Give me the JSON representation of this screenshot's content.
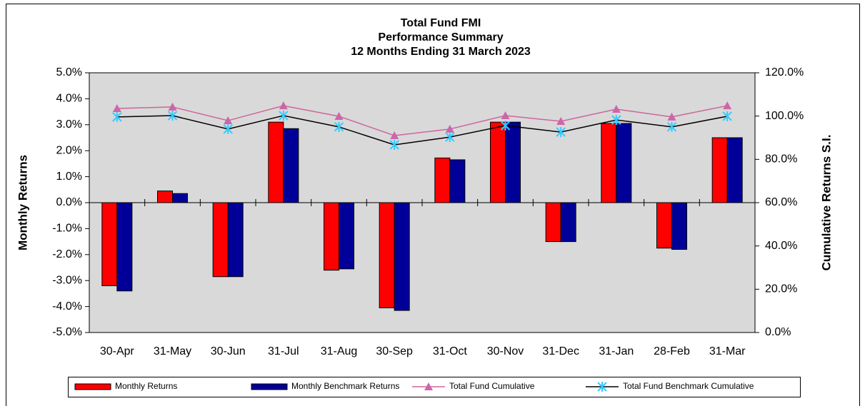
{
  "chart_data": {
    "type": "bar-line",
    "title": [
      "Total Fund FMI",
      "Performance Summary",
      "12 Months Ending 31 March 2023"
    ],
    "y_label": "Monthly Returns",
    "y2_label": "Cumulative Returns S.I.",
    "categories": [
      "30-Apr",
      "31-May",
      "30-Jun",
      "31-Jul",
      "31-Aug",
      "30-Sep",
      "31-Oct",
      "30-Nov",
      "31-Dec",
      "31-Jan",
      "28-Feb",
      "31-Mar"
    ],
    "ylim": [
      -5,
      5
    ],
    "yticks": [
      {
        "value": -5,
        "label": "-5.0%"
      },
      {
        "value": -4,
        "label": "-4.0%"
      },
      {
        "value": -3,
        "label": "-3.0%"
      },
      {
        "value": -2,
        "label": "-2.0%"
      },
      {
        "value": -1,
        "label": "-1.0%"
      },
      {
        "value": 0,
        "label": "0.0%"
      },
      {
        "value": 1,
        "label": "1.0%"
      },
      {
        "value": 2,
        "label": "2.0%"
      },
      {
        "value": 3,
        "label": "3.0%"
      },
      {
        "value": 4,
        "label": "4.0%"
      },
      {
        "value": 5,
        "label": "5.0%"
      }
    ],
    "y2lim": [
      0,
      120
    ],
    "y2ticks": [
      {
        "value": 0,
        "label": "0.0%"
      },
      {
        "value": 20,
        "label": "20.0%"
      },
      {
        "value": 40,
        "label": "40.0%"
      },
      {
        "value": 60,
        "label": "60.0%"
      },
      {
        "value": 80,
        "label": "80.0%"
      },
      {
        "value": 100,
        "label": "100.0%"
      },
      {
        "value": 120,
        "label": "120.0%"
      }
    ],
    "series": [
      {
        "name": "Monthly Returns",
        "kind": "bar",
        "color": "#ff0000",
        "values": [
          -3.2,
          0.45,
          -2.85,
          3.1,
          -2.6,
          -4.05,
          1.72,
          3.1,
          -1.5,
          3.05,
          -1.75,
          2.5
        ]
      },
      {
        "name": "Monthly Benchmark Returns",
        "kind": "bar",
        "color": "#000099",
        "values": [
          -3.4,
          0.35,
          -2.85,
          2.85,
          -2.55,
          -4.15,
          1.65,
          3.1,
          -1.5,
          3.05,
          -1.8,
          2.5
        ]
      },
      {
        "name": "Total Fund Cumulative",
        "kind": "line",
        "axis": "y2",
        "color": "#cc6699",
        "marker": "triangle",
        "marker_color": "#cc66aa",
        "values": [
          103.5,
          104.2,
          97.9,
          104.8,
          99.9,
          91.0,
          94.0,
          100.2,
          97.6,
          103.2,
          99.6,
          104.8
        ]
      },
      {
        "name": "Total Fund Benchmark Cumulative",
        "kind": "line",
        "axis": "y2",
        "color": "#000000",
        "marker": "x",
        "marker_color": "#33ccff",
        "values": [
          99.6,
          100.2,
          94.0,
          100.2,
          95.0,
          86.7,
          90.3,
          95.6,
          92.6,
          98.2,
          95.0,
          99.9
        ]
      }
    ],
    "plot_background": "#d9d9d9",
    "legend": "bottom"
  }
}
